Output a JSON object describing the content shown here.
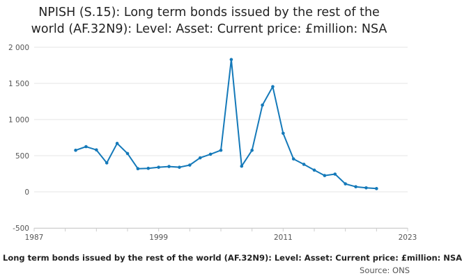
{
  "title_line1": "NPISH (S.15): Long term bonds issued by the rest of the",
  "title_line2": "world (AF.32N9): Level: Asset: Current price: £million: NSA",
  "caption": "Long term bonds issued by the rest of the world (AF.32N9): Level: Asset: Current price: £million: NSA",
  "source": "Source: ONS",
  "colors": {
    "line": "#1479b9",
    "grid": "#e6e6e6",
    "axis": "#cccccc",
    "text": "#555555"
  },
  "chart_data": {
    "type": "line",
    "title": "NPISH (S.15): Long term bonds issued by the rest of the world (AF.32N9): Level: Asset: Current price: £million: NSA",
    "xlabel": "",
    "ylabel": "",
    "xlim": [
      1987,
      2023
    ],
    "ylim": [
      -500,
      2000
    ],
    "x_ticks": [
      "1987",
      "1999",
      "2011",
      "2023"
    ],
    "y_ticks": [
      "-500",
      "0",
      "500",
      "1 000",
      "1 500",
      "2 000"
    ],
    "grid": "horizontal",
    "legend": "none",
    "series": [
      {
        "x": [
          1991,
          1992,
          1993,
          1994,
          1995,
          1996,
          1997,
          1998,
          1999,
          2000,
          2001,
          2002,
          2003,
          2004,
          2005,
          2006,
          2007,
          2008,
          2009,
          2010,
          2011,
          2012,
          2013,
          2014,
          2015,
          2016,
          2017,
          2018,
          2019,
          2020
        ],
        "values": [
          575,
          625,
          580,
          400,
          670,
          530,
          320,
          325,
          340,
          350,
          340,
          370,
          470,
          520,
          575,
          1830,
          355,
          575,
          1200,
          1455,
          810,
          455,
          380,
          300,
          225,
          245,
          110,
          70,
          55,
          45
        ]
      }
    ]
  }
}
